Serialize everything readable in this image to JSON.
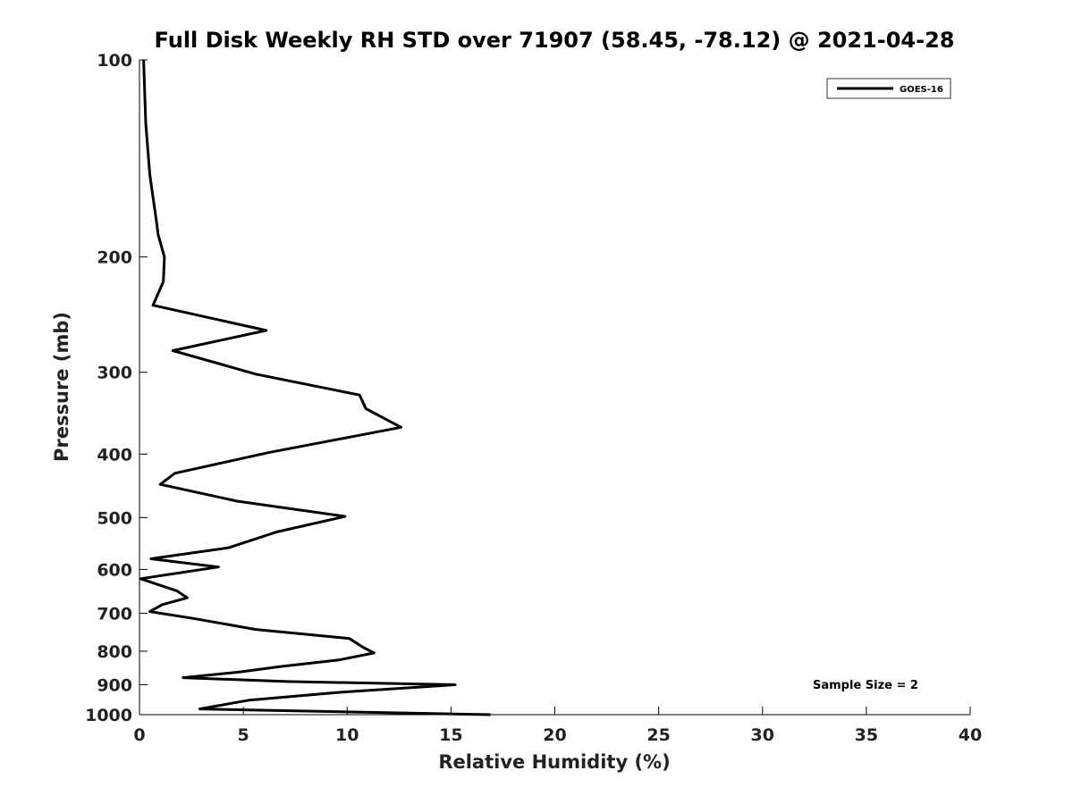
{
  "chart_data": {
    "type": "line",
    "title": "Full Disk Weekly RH STD over 71907 (58.45, -78.12) @ 2021-04-28",
    "xlabel": "Relative Humidity (%)",
    "ylabel": "Pressure (mb)",
    "xlim": [
      0,
      40
    ],
    "ylim": [
      100,
      1000
    ],
    "y_scale": "log",
    "y_reversed": true,
    "grid": false,
    "legend_position": "top-right",
    "x_ticks": [
      "0",
      "5",
      "10",
      "15",
      "20",
      "25",
      "30",
      "35",
      "40"
    ],
    "y_ticks": [
      "100",
      "200",
      "300",
      "400",
      "500",
      "600",
      "700",
      "800",
      "900",
      "1000"
    ],
    "series": [
      {
        "name": "GOES-16",
        "color": "#000000",
        "points": [
          [
            0.2,
            100
          ],
          [
            0.3,
            125
          ],
          [
            0.5,
            150
          ],
          [
            0.8,
            175
          ],
          [
            0.9,
            185
          ],
          [
            1.2,
            200
          ],
          [
            1.15,
            218
          ],
          [
            0.65,
            237
          ],
          [
            6.1,
            259
          ],
          [
            1.6,
            278
          ],
          [
            5.6,
            302
          ],
          [
            10.6,
            325
          ],
          [
            10.9,
            341
          ],
          [
            12.6,
            364
          ],
          [
            6.2,
            398
          ],
          [
            1.7,
            428
          ],
          [
            1.0,
            445
          ],
          [
            4.7,
            472
          ],
          [
            9.9,
            498
          ],
          [
            6.6,
            526
          ],
          [
            4.3,
            556
          ],
          [
            0.55,
            578
          ],
          [
            3.8,
            595
          ],
          [
            0.05,
            620
          ],
          [
            1.8,
            647
          ],
          [
            2.3,
            663
          ],
          [
            1.1,
            679
          ],
          [
            0.5,
            696
          ],
          [
            2.6,
            713
          ],
          [
            5.6,
            741
          ],
          [
            10.1,
            765
          ],
          [
            10.8,
            790
          ],
          [
            11.3,
            805
          ],
          [
            9.6,
            825
          ],
          [
            6.7,
            845
          ],
          [
            4.9,
            860
          ],
          [
            2.1,
            878
          ],
          [
            7.1,
            890
          ],
          [
            15.2,
            900
          ],
          [
            9.5,
            925
          ],
          [
            5.3,
            950
          ],
          [
            2.9,
            980
          ],
          [
            16.9,
            1000
          ]
        ]
      }
    ],
    "annotation": "Sample Size = 2"
  }
}
